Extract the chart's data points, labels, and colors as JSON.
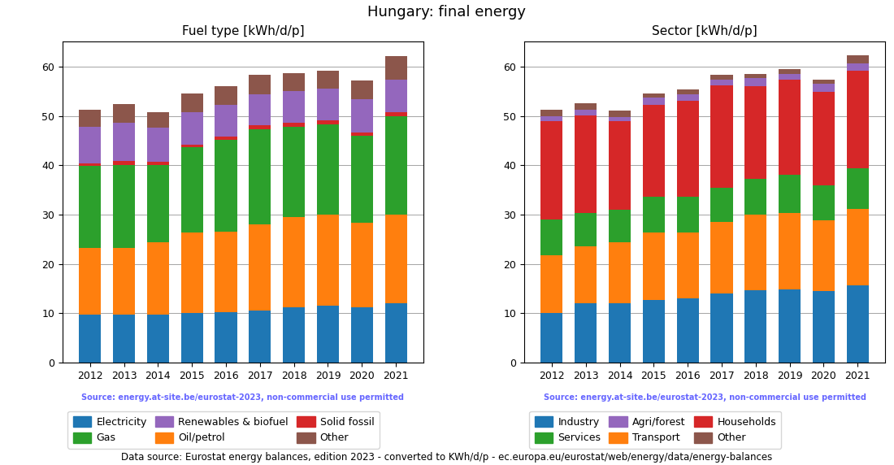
{
  "title": "Hungary: final energy",
  "years": [
    2012,
    2013,
    2014,
    2015,
    2016,
    2017,
    2018,
    2019,
    2020,
    2021
  ],
  "fuel_title": "Fuel type [kWh/d/p]",
  "fuel_electricity": [
    9.8,
    9.7,
    9.7,
    10.1,
    10.3,
    10.5,
    11.2,
    11.5,
    11.3,
    12.0
  ],
  "fuel_oil": [
    13.5,
    13.6,
    14.7,
    16.2,
    16.3,
    17.5,
    18.3,
    18.5,
    17.0,
    18.0
  ],
  "fuel_gas": [
    16.5,
    16.8,
    15.6,
    17.3,
    18.5,
    19.3,
    18.3,
    18.3,
    17.7,
    20.0
  ],
  "fuel_solid": [
    0.5,
    0.7,
    0.7,
    0.6,
    0.7,
    0.8,
    0.8,
    0.8,
    0.6,
    0.8
  ],
  "fuel_renewables": [
    7.5,
    7.8,
    7.0,
    6.5,
    6.5,
    6.3,
    6.5,
    6.5,
    6.8,
    6.5
  ],
  "fuel_other": [
    3.5,
    3.8,
    3.0,
    3.8,
    3.8,
    4.0,
    3.5,
    3.5,
    3.8,
    4.8
  ],
  "sector_title": "Sector [kWh/d/p]",
  "sector_industry": [
    10.1,
    12.1,
    12.1,
    12.7,
    13.1,
    14.1,
    14.7,
    14.8,
    14.6,
    15.7
  ],
  "sector_transport": [
    11.7,
    11.5,
    12.3,
    13.7,
    13.3,
    14.5,
    15.3,
    15.5,
    14.2,
    15.5
  ],
  "sector_services": [
    7.2,
    6.8,
    6.6,
    7.3,
    7.3,
    6.9,
    7.2,
    7.7,
    7.2,
    8.2
  ],
  "sector_households": [
    20.0,
    19.7,
    17.9,
    18.5,
    19.4,
    20.7,
    18.9,
    19.3,
    18.8,
    19.8
  ],
  "sector_agriforest": [
    1.0,
    1.2,
    0.8,
    1.5,
    1.3,
    1.2,
    1.5,
    1.2,
    1.7,
    1.5
  ],
  "sector_other": [
    1.3,
    1.3,
    1.3,
    0.8,
    0.9,
    0.9,
    0.9,
    0.9,
    0.9,
    1.5
  ],
  "color_electricity": "#1f77b4",
  "color_oil": "#ff7f0e",
  "color_gas": "#2ca02c",
  "color_solid": "#d62728",
  "color_renewables": "#9467bd",
  "color_other_fuel": "#8c564b",
  "color_industry": "#1f77b4",
  "color_transport": "#ff7f0e",
  "color_services": "#2ca02c",
  "color_households": "#d62728",
  "color_agriforest": "#9467bd",
  "color_other_sector": "#8c564b",
  "source_text": "Source: energy.at-site.be/eurostat-2023, non-commercial use permitted",
  "footer_text": "Data source: Eurostat energy balances, edition 2023 - converted to KWh/d/p - ec.europa.eu/eurostat/web/energy/data/energy-balances",
  "ylim": [
    0,
    65
  ],
  "yticks": [
    0,
    10,
    20,
    30,
    40,
    50,
    60
  ]
}
